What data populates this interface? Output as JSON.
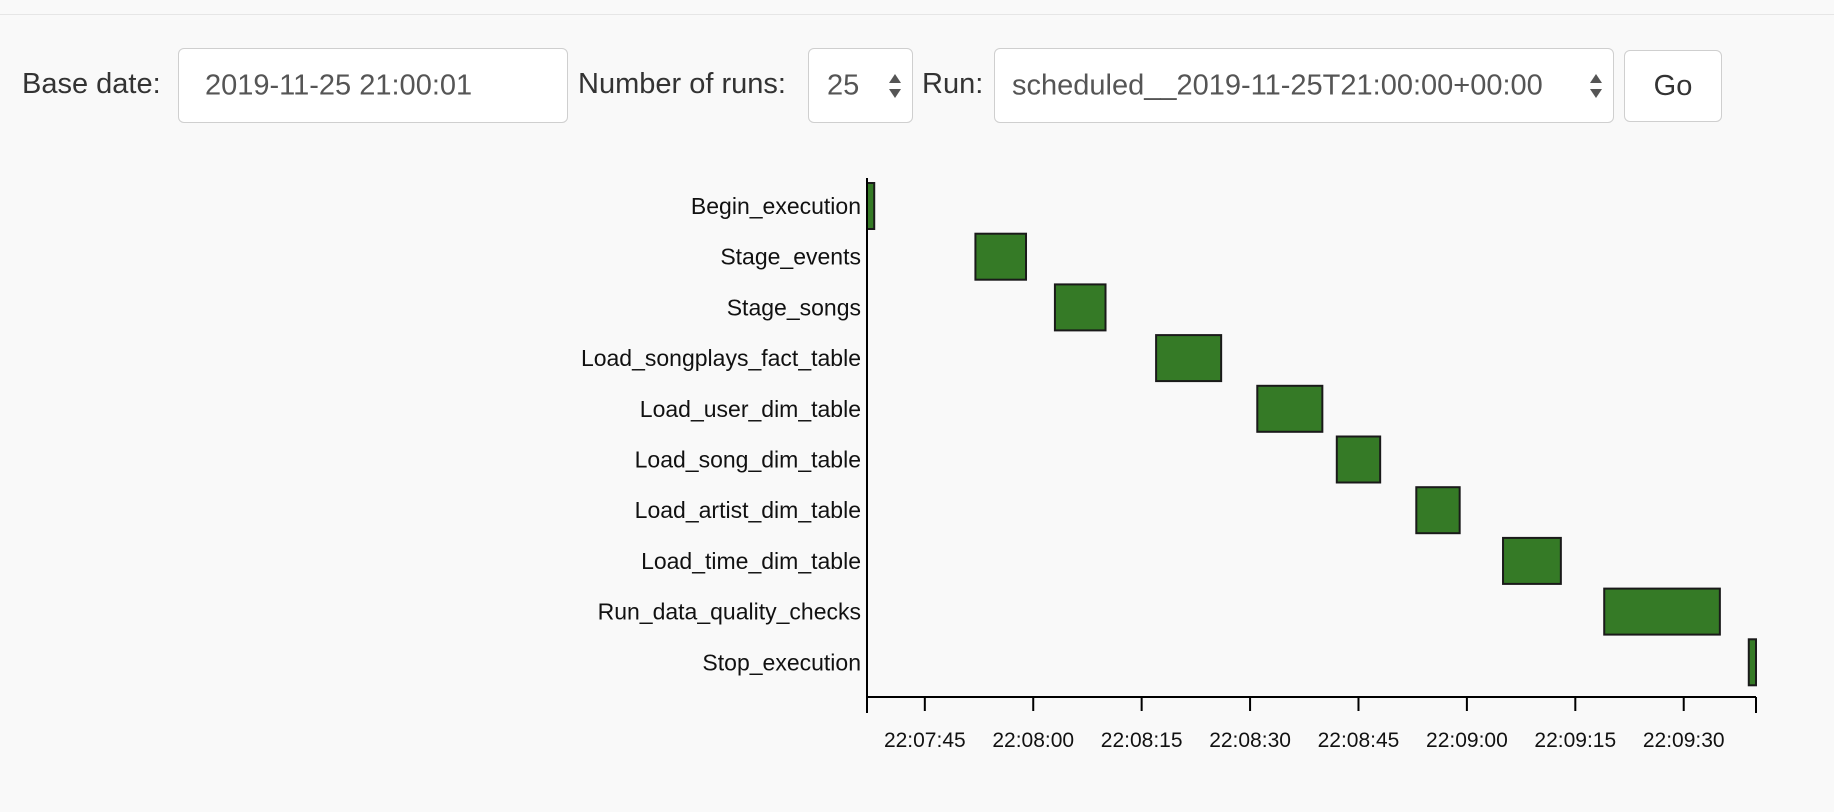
{
  "form": {
    "base_date_label": "Base date:",
    "base_date_value": "2019-11-25 21:00:01",
    "num_runs_label": "Number of runs:",
    "num_runs_value": "25",
    "run_label": "Run:",
    "run_value": "scheduled__2019-11-25T21:00:00+00:00",
    "go_label": "Go"
  },
  "chart_data": {
    "type": "gantt",
    "bar_color": "#357a26",
    "bar_stroke": "#1a1a1a",
    "x_axis": {
      "unit": "time",
      "range": [
        "22:07:37",
        "22:09:40"
      ],
      "ticks": [
        "22:07:45",
        "22:08:00",
        "22:08:15",
        "22:08:30",
        "22:08:45",
        "22:09:00",
        "22:09:15",
        "22:09:30"
      ]
    },
    "tasks": [
      {
        "name": "Begin_execution",
        "start": "22:07:37",
        "end": "22:07:38"
      },
      {
        "name": "Stage_events",
        "start": "22:07:52",
        "end": "22:07:59"
      },
      {
        "name": "Stage_songs",
        "start": "22:08:03",
        "end": "22:08:10"
      },
      {
        "name": "Load_songplays_fact_table",
        "start": "22:08:17",
        "end": "22:08:26"
      },
      {
        "name": "Load_user_dim_table",
        "start": "22:08:31",
        "end": "22:08:40"
      },
      {
        "name": "Load_song_dim_table",
        "start": "22:08:42",
        "end": "22:08:48"
      },
      {
        "name": "Load_artist_dim_table",
        "start": "22:08:53",
        "end": "22:08:59"
      },
      {
        "name": "Load_time_dim_table",
        "start": "22:09:05",
        "end": "22:09:13"
      },
      {
        "name": "Run_data_quality_checks",
        "start": "22:09:19",
        "end": "22:09:35"
      },
      {
        "name": "Stop_execution",
        "start": "22:09:39",
        "end": "22:09:40"
      }
    ]
  }
}
